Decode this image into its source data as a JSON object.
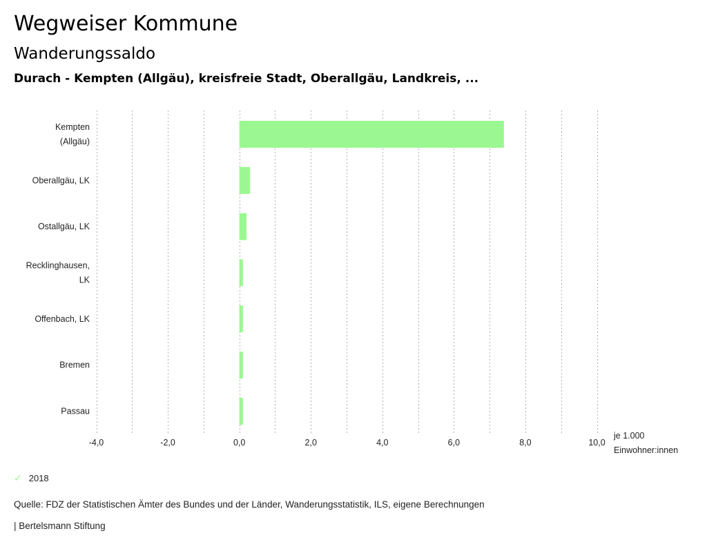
{
  "header": {
    "title": "Wegweiser Kommune",
    "subtitle": "Wanderungssaldo",
    "region": "Durach - Kempten (Allgäu), kreisfreie Stadt, Oberallgäu, Landkreis, ..."
  },
  "colors": {
    "bar": "#9bf792",
    "grid": "#b0b0b0"
  },
  "chart_data": {
    "type": "bar",
    "orientation": "horizontal",
    "title": "Wanderungssaldo",
    "xlabel": "je 1.000 Einwohner:innen",
    "xlabel_lines": [
      "je 1.000",
      "Einwohner:innen"
    ],
    "ylabel": "",
    "categories": [
      [
        "Kempten",
        "(Allgäu)"
      ],
      [
        "Oberallgäu, LK"
      ],
      [
        "Ostallgäu, LK"
      ],
      [
        "Recklinghausen,",
        "LK"
      ],
      [
        "Offenbach, LK"
      ],
      [
        "Bremen"
      ],
      [
        "Passau"
      ]
    ],
    "series": [
      {
        "name": "2018",
        "values": [
          7.4,
          0.3,
          0.2,
          0.1,
          0.1,
          0.1,
          0.1
        ]
      }
    ],
    "xlim": [
      -4.0,
      10.0
    ],
    "ticks": [
      -4,
      -2,
      0,
      2,
      4,
      6,
      8,
      10
    ],
    "tick_labels": [
      "-4,0",
      "-2,0",
      "0,0",
      "2,0",
      "4,0",
      "6,0",
      "8,0",
      "10,0"
    ],
    "grid_step": 1,
    "grid": true,
    "legend": {
      "position": "bottom-left",
      "entries": [
        "2018"
      ]
    }
  },
  "legend": {
    "label": "2018",
    "icon": "check-icon"
  },
  "footer": {
    "source": "Quelle: FDZ der Statistischen Ämter des Bundes und der Länder, Wanderungsstatistik, ILS, eigene Berechnungen",
    "brand": "| Bertelsmann Stiftung"
  }
}
